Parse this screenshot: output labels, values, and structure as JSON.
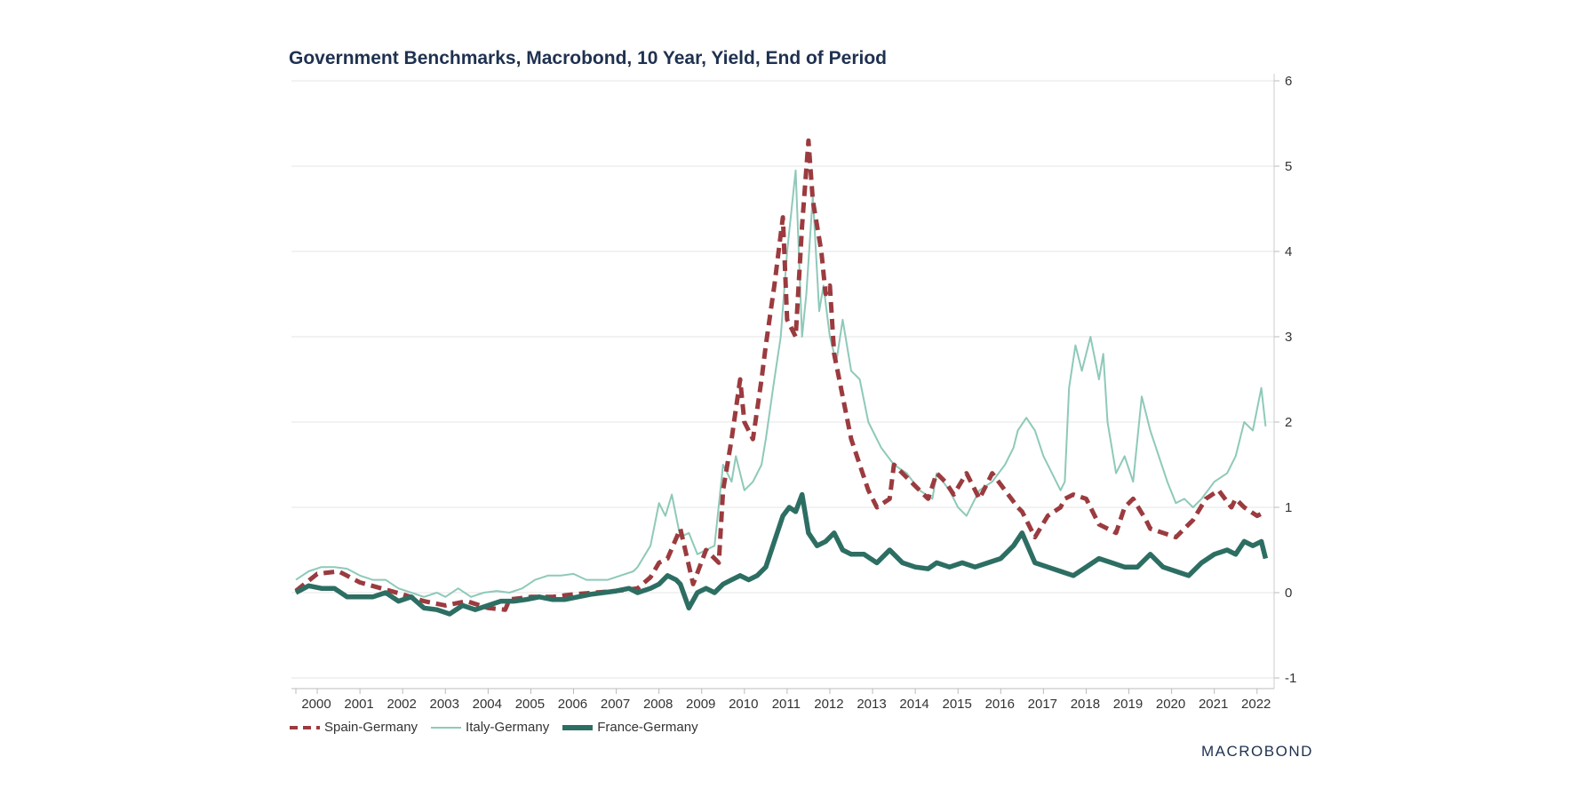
{
  "chart_data": {
    "type": "line",
    "title": "Government Benchmarks, Macrobond, 10 Year, Yield, End of Period",
    "xlabel": "",
    "ylabel": "",
    "xlim": [
      2000,
      2022.9
    ],
    "ylim": [
      -1,
      6
    ],
    "y_ticks": [
      "-1",
      "0",
      "1",
      "2",
      "3",
      "4",
      "5",
      "6"
    ],
    "x_ticks": [
      "2000",
      "2001",
      "2002",
      "2003",
      "2004",
      "2005",
      "2006",
      "2007",
      "2008",
      "2009",
      "2010",
      "2011",
      "2012",
      "2013",
      "2014",
      "2015",
      "2016",
      "2017",
      "2018",
      "2019",
      "2020",
      "2021",
      "2022"
    ],
    "y_axis_position": "right",
    "grid": true,
    "legend_position": "bottom-left",
    "series": [
      {
        "name": "Spain-Germany",
        "color": "#9b3b3f",
        "style": "dashed",
        "x": [
          2000.0,
          2000.5,
          2001.0,
          2001.5,
          2002.0,
          2002.5,
          2003.0,
          2003.5,
          2004.0,
          2004.5,
          2004.9,
          2005.0,
          2005.5,
          2006.0,
          2006.5,
          2007.0,
          2007.5,
          2008.0,
          2008.3,
          2008.5,
          2008.7,
          2009.0,
          2009.3,
          2009.6,
          2009.9,
          2010.0,
          2010.2,
          2010.4,
          2010.5,
          2010.7,
          2010.9,
          2011.0,
          2011.2,
          2011.4,
          2011.5,
          2011.7,
          2011.85,
          2012.0,
          2012.1,
          2012.3,
          2012.4,
          2012.5,
          2012.6,
          2012.8,
          2013.0,
          2013.2,
          2013.4,
          2013.6,
          2013.9,
          2014.0,
          2014.4,
          2014.8,
          2015.0,
          2015.2,
          2015.4,
          2015.7,
          2016.0,
          2016.3,
          2016.6,
          2016.9,
          2017.0,
          2017.3,
          2017.6,
          2017.9,
          2018.0,
          2018.2,
          2018.5,
          2018.8,
          2019.0,
          2019.2,
          2019.4,
          2019.6,
          2019.9,
          2020.0,
          2020.3,
          2020.6,
          2020.9,
          2021.0,
          2021.3,
          2021.6,
          2021.9,
          2022.0,
          2022.2,
          2022.5,
          2022.7
        ],
        "values": [
          0.02,
          0.22,
          0.25,
          0.12,
          0.05,
          -0.02,
          -0.1,
          -0.15,
          -0.1,
          -0.18,
          -0.2,
          -0.08,
          -0.05,
          -0.05,
          -0.02,
          0.0,
          0.02,
          0.05,
          0.18,
          0.35,
          0.4,
          0.75,
          0.1,
          0.5,
          0.35,
          1.2,
          1.8,
          2.5,
          2.0,
          1.8,
          2.5,
          2.9,
          3.6,
          4.4,
          3.2,
          3.0,
          4.3,
          5.3,
          4.6,
          4.0,
          3.5,
          3.6,
          2.8,
          2.3,
          1.8,
          1.5,
          1.2,
          1.0,
          1.1,
          1.5,
          1.3,
          1.1,
          1.4,
          1.3,
          1.15,
          1.4,
          1.1,
          1.4,
          1.2,
          1.0,
          0.95,
          0.65,
          0.9,
          1.0,
          1.1,
          1.15,
          1.1,
          0.8,
          0.75,
          0.7,
          1.0,
          1.1,
          0.85,
          0.75,
          0.7,
          0.65,
          0.8,
          0.85,
          1.1,
          1.2,
          1.0,
          1.1,
          1.0,
          0.9,
          0.95
        ]
      },
      {
        "name": "Italy-Germany",
        "color": "#8ec9b9",
        "style": "solid-thin",
        "x": [
          2000.0,
          2000.3,
          2000.6,
          2000.9,
          2001.2,
          2001.5,
          2001.8,
          2002.1,
          2002.4,
          2002.7,
          2003.0,
          2003.3,
          2003.5,
          2003.8,
          2004.1,
          2004.4,
          2004.7,
          2005.0,
          2005.3,
          2005.6,
          2005.9,
          2006.2,
          2006.5,
          2006.8,
          2007.0,
          2007.3,
          2007.6,
          2007.9,
          2008.0,
          2008.3,
          2008.5,
          2008.65,
          2008.8,
          2009.0,
          2009.2,
          2009.4,
          2009.6,
          2009.8,
          2010.0,
          2010.2,
          2010.3,
          2010.5,
          2010.7,
          2010.9,
          2011.0,
          2011.2,
          2011.35,
          2011.5,
          2011.7,
          2011.85,
          2011.95,
          2012.1,
          2012.25,
          2012.35,
          2012.5,
          2012.65,
          2012.8,
          2013.0,
          2013.2,
          2013.4,
          2013.7,
          2014.0,
          2014.3,
          2014.6,
          2014.9,
          2015.0,
          2015.3,
          2015.5,
          2015.7,
          2016.0,
          2016.3,
          2016.6,
          2016.8,
          2016.9,
          2017.1,
          2017.3,
          2017.5,
          2017.7,
          2017.9,
          2018.0,
          2018.1,
          2018.25,
          2018.4,
          2018.6,
          2018.8,
          2018.9,
          2019.0,
          2019.2,
          2019.4,
          2019.6,
          2019.8,
          2020.0,
          2020.2,
          2020.4,
          2020.6,
          2020.8,
          2021.0,
          2021.2,
          2021.5,
          2021.8,
          2022.0,
          2022.2,
          2022.4,
          2022.6,
          2022.7
        ],
        "values": [
          0.15,
          0.25,
          0.3,
          0.3,
          0.28,
          0.2,
          0.15,
          0.15,
          0.05,
          0.0,
          -0.05,
          0.0,
          -0.05,
          0.05,
          -0.05,
          0.0,
          0.02,
          0.0,
          0.05,
          0.15,
          0.2,
          0.2,
          0.22,
          0.15,
          0.15,
          0.15,
          0.2,
          0.25,
          0.3,
          0.55,
          1.05,
          0.9,
          1.15,
          0.65,
          0.7,
          0.45,
          0.5,
          0.55,
          1.5,
          1.3,
          1.6,
          1.2,
          1.3,
          1.5,
          1.8,
          2.5,
          3.0,
          4.0,
          4.95,
          3.0,
          3.5,
          4.65,
          3.3,
          3.6,
          3.0,
          2.7,
          3.2,
          2.6,
          2.5,
          2.0,
          1.7,
          1.5,
          1.4,
          1.2,
          1.1,
          1.4,
          1.2,
          1.0,
          0.9,
          1.2,
          1.3,
          1.5,
          1.7,
          1.9,
          2.05,
          1.9,
          1.6,
          1.4,
          1.2,
          1.3,
          2.4,
          2.9,
          2.6,
          3.0,
          2.5,
          2.8,
          2.0,
          1.4,
          1.6,
          1.3,
          2.3,
          1.9,
          1.6,
          1.3,
          1.05,
          1.1,
          1.0,
          1.1,
          1.3,
          1.4,
          1.6,
          2.0,
          1.9,
          2.4,
          1.95
        ]
      },
      {
        "name": "France-Germany",
        "color": "#2d6e63",
        "style": "solid-thick",
        "x": [
          2000.0,
          2000.3,
          2000.6,
          2000.9,
          2001.2,
          2001.5,
          2001.8,
          2002.1,
          2002.4,
          2002.7,
          2003.0,
          2003.3,
          2003.6,
          2003.9,
          2004.2,
          2004.5,
          2004.8,
          2005.1,
          2005.4,
          2005.7,
          2006.0,
          2006.3,
          2006.6,
          2006.9,
          2007.2,
          2007.5,
          2007.8,
          2008.0,
          2008.3,
          2008.5,
          2008.7,
          2008.9,
          2009.0,
          2009.2,
          2009.4,
          2009.6,
          2009.8,
          2010.0,
          2010.2,
          2010.4,
          2010.6,
          2010.8,
          2011.0,
          2011.2,
          2011.4,
          2011.55,
          2011.7,
          2011.85,
          2012.0,
          2012.2,
          2012.4,
          2012.6,
          2012.8,
          2013.0,
          2013.3,
          2013.6,
          2013.9,
          2014.2,
          2014.5,
          2014.8,
          2015.0,
          2015.3,
          2015.6,
          2015.9,
          2016.2,
          2016.5,
          2016.8,
          2017.0,
          2017.3,
          2017.6,
          2017.9,
          2018.2,
          2018.5,
          2018.8,
          2019.1,
          2019.4,
          2019.7,
          2020.0,
          2020.3,
          2020.6,
          2020.9,
          2021.2,
          2021.5,
          2021.8,
          2022.0,
          2022.2,
          2022.4,
          2022.6,
          2022.7
        ],
        "values": [
          0.0,
          0.08,
          0.05,
          0.05,
          -0.05,
          -0.05,
          -0.05,
          0.0,
          -0.1,
          -0.05,
          -0.18,
          -0.2,
          -0.25,
          -0.15,
          -0.2,
          -0.15,
          -0.1,
          -0.1,
          -0.08,
          -0.05,
          -0.08,
          -0.08,
          -0.05,
          -0.02,
          0.0,
          0.02,
          0.05,
          0.0,
          0.05,
          0.1,
          0.2,
          0.15,
          0.1,
          -0.18,
          0.0,
          0.05,
          0.0,
          0.1,
          0.15,
          0.2,
          0.15,
          0.2,
          0.3,
          0.6,
          0.9,
          1.0,
          0.95,
          1.15,
          0.7,
          0.55,
          0.6,
          0.7,
          0.5,
          0.45,
          0.45,
          0.35,
          0.5,
          0.35,
          0.3,
          0.28,
          0.35,
          0.3,
          0.35,
          0.3,
          0.35,
          0.4,
          0.55,
          0.7,
          0.35,
          0.3,
          0.25,
          0.2,
          0.3,
          0.4,
          0.35,
          0.3,
          0.3,
          0.45,
          0.3,
          0.25,
          0.2,
          0.35,
          0.45,
          0.5,
          0.45,
          0.6,
          0.55,
          0.6,
          0.4
        ]
      }
    ]
  },
  "legend": {
    "items": [
      {
        "label": "Spain-Germany"
      },
      {
        "label": "Italy-Germany"
      },
      {
        "label": "France-Germany"
      }
    ]
  },
  "brand": {
    "logo_text": "MACROBOND"
  }
}
